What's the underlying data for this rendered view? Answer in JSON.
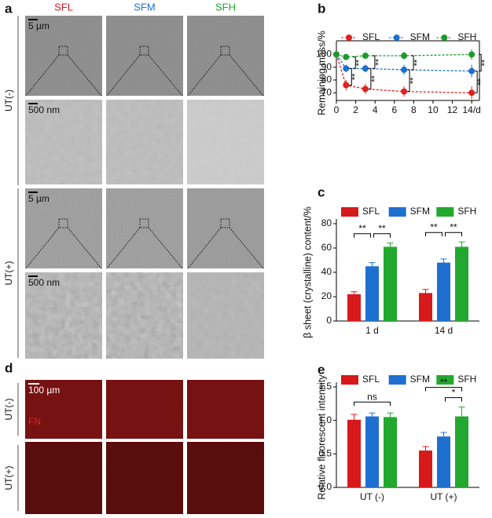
{
  "figure": {
    "panel_a": {
      "label": "a",
      "columns": [
        "SFL",
        "SFM",
        "SFH"
      ],
      "rows": [
        "UT(-)",
        "UT(+)"
      ],
      "scale_bars": [
        "5 µm",
        "500 nm",
        "5 µm",
        "500 nm"
      ]
    },
    "panel_d": {
      "label": "d",
      "rows": [
        "UT(-)",
        "UT(+)"
      ],
      "scale_bar": "100 µm",
      "stain": "FN"
    },
    "chart_labels": [
      "b",
      "c",
      "e"
    ]
  },
  "chart_data": [
    {
      "type": "line",
      "ylabel": "Remaining mass/%",
      "x": [
        0,
        1,
        3,
        7,
        14
      ],
      "xlim": [
        0,
        14.8
      ],
      "xticks": [
        0,
        2,
        4,
        6,
        8,
        10,
        12,
        {
          "value": 14,
          "label": "14/d"
        }
      ],
      "ylim": [
        64,
        107
      ],
      "yticks": [
        70,
        80,
        90,
        100
      ],
      "frame": true,
      "series": [
        {
          "name": "SFL",
          "color": "#e0211f",
          "values": [
            100,
            76,
            73,
            71,
            70
          ],
          "errors": [
            0,
            4,
            4,
            4,
            5
          ]
        },
        {
          "name": "SFM",
          "color": "#1f6fd0",
          "values": [
            100,
            89,
            89,
            88,
            87
          ],
          "errors": [
            0,
            3,
            3,
            4,
            5
          ]
        },
        {
          "name": "SFH",
          "color": "#1e9a2d",
          "values": [
            100,
            98,
            99,
            99,
            100
          ],
          "errors": [
            0,
            2,
            2,
            3,
            4
          ]
        }
      ],
      "significance": [
        {
          "x": 1,
          "from": 0,
          "to": 1,
          "label": "**"
        },
        {
          "x": 1,
          "from": 1,
          "to": 2,
          "label": "**"
        },
        {
          "x": 3,
          "from": 0,
          "to": 1,
          "label": "**"
        },
        {
          "x": 3,
          "from": 1,
          "to": 2,
          "label": "**"
        },
        {
          "x": 7,
          "from": 0,
          "to": 1,
          "label": "**"
        },
        {
          "x": 7,
          "from": 1,
          "to": 2,
          "label": "**"
        },
        {
          "x": 14,
          "from": 0,
          "to": 1,
          "label": "**"
        },
        {
          "x": 14,
          "from": 1,
          "to": 2,
          "label": "**"
        }
      ]
    },
    {
      "type": "bar",
      "ylabel": "β sheet (crystalline) content/%",
      "categories": [
        "1 d",
        "14 d"
      ],
      "ylim": [
        0,
        80
      ],
      "yticks": [
        0,
        20,
        40,
        60,
        80
      ],
      "series": [
        {
          "name": "SFL",
          "color": "#d7191c",
          "values": [
            22,
            23
          ],
          "errors": [
            2,
            3
          ]
        },
        {
          "name": "SFM",
          "color": "#1f6fd0",
          "values": [
            45,
            48
          ],
          "errors": [
            3,
            3
          ]
        },
        {
          "name": "SFH",
          "color": "#22a82f",
          "values": [
            61,
            61
          ],
          "errors": [
            3,
            4
          ]
        }
      ],
      "significance": [
        {
          "category": 0,
          "from": 0,
          "to": 1,
          "label": "**"
        },
        {
          "category": 0,
          "from": 1,
          "to": 2,
          "label": "**"
        },
        {
          "category": 1,
          "from": 0,
          "to": 1,
          "label": "**"
        },
        {
          "category": 1,
          "from": 1,
          "to": 2,
          "label": "**"
        }
      ]
    },
    {
      "type": "bar",
      "ylabel": "Relative fluorescent intensity",
      "categories": [
        "UT (-)",
        "UT (+)"
      ],
      "ylim": [
        0,
        1.5
      ],
      "yticks": [
        {
          "value": 0,
          "label": "0.0"
        },
        {
          "value": 0.5,
          "label": "0.5"
        },
        {
          "value": 1,
          "label": "1.0"
        },
        {
          "value": 1.5,
          "label": "1.5"
        }
      ],
      "series": [
        {
          "name": "SFL",
          "color": "#d7191c",
          "values": [
            1.01,
            0.55
          ],
          "errors": [
            0.08,
            0.06
          ]
        },
        {
          "name": "SFM",
          "color": "#1f6fd0",
          "values": [
            1.06,
            0.76
          ],
          "errors": [
            0.05,
            0.06
          ]
        },
        {
          "name": "SFH",
          "color": "#22a82f",
          "values": [
            1.05,
            1.06
          ],
          "errors": [
            0.06,
            0.14
          ]
        }
      ],
      "significance": [
        {
          "category": 0,
          "from": 0,
          "to": 2,
          "label": "ns"
        },
        {
          "category": 1,
          "from": 1,
          "to": 2,
          "label": "*"
        },
        {
          "category": 1,
          "from": 0,
          "to": 2,
          "label": "**"
        }
      ]
    }
  ]
}
